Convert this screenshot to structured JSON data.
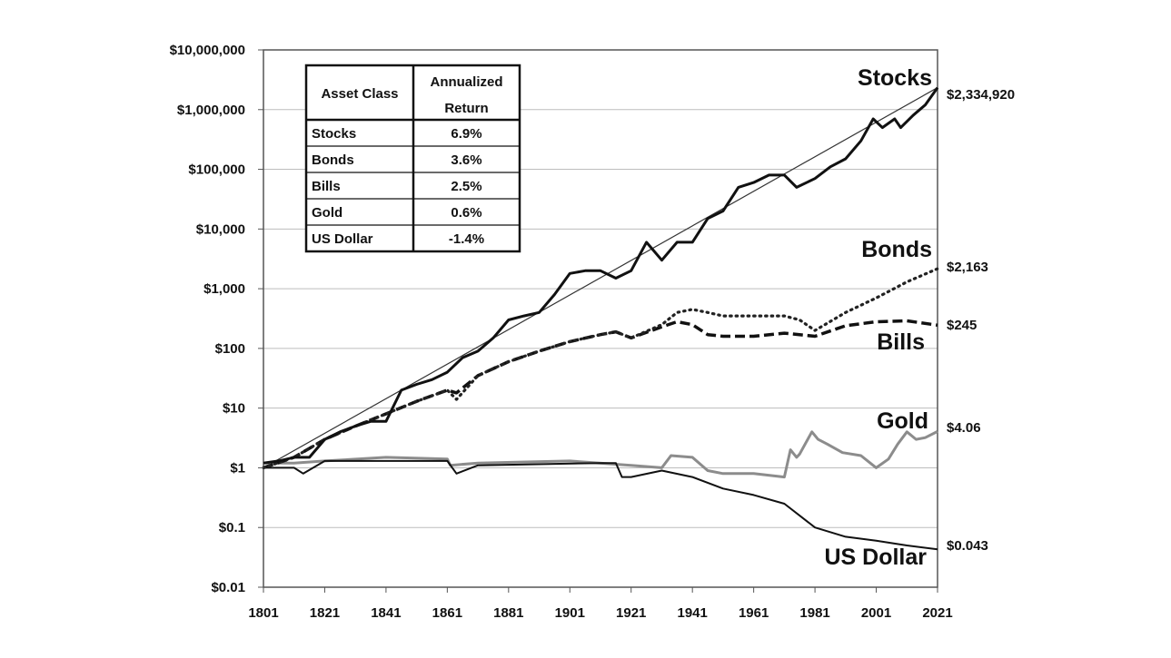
{
  "chart_data": {
    "type": "line",
    "title": "",
    "xlabel": "",
    "ylabel": "",
    "y_scale": "log",
    "xlim": [
      1801,
      2021
    ],
    "ylim": [
      0.01,
      10000000
    ],
    "grid": "horizontal",
    "x_ticks": [
      "1801",
      "1821",
      "1841",
      "1861",
      "1881",
      "1901",
      "1921",
      "1941",
      "1961",
      "1981",
      "2001",
      "2021"
    ],
    "y_ticks": [
      {
        "value": 0.01,
        "label": "$0.01"
      },
      {
        "value": 0.1,
        "label": "$0.1"
      },
      {
        "value": 1,
        "label": "$1"
      },
      {
        "value": 10,
        "label": "$10"
      },
      {
        "value": 100,
        "label": "$100"
      },
      {
        "value": 1000,
        "label": "$1,000"
      },
      {
        "value": 10000,
        "label": "$10,000"
      },
      {
        "value": 100000,
        "label": "$100,000"
      },
      {
        "value": 1000000,
        "label": "$1,000,000"
      },
      {
        "value": 10000000,
        "label": "$10,000,000"
      }
    ],
    "trend_line": {
      "x": [
        1801,
        2021
      ],
      "y": [
        1,
        2334920
      ]
    },
    "series": [
      {
        "name": "Stocks",
        "end_label": "$2,334,920",
        "color": "#111111",
        "style": "solid",
        "x": [
          1801,
          1806,
          1811,
          1816,
          1821,
          1826,
          1831,
          1836,
          1841,
          1846,
          1851,
          1856,
          1861,
          1866,
          1871,
          1876,
          1881,
          1886,
          1891,
          1896,
          1901,
          1906,
          1911,
          1916,
          1921,
          1926,
          1931,
          1936,
          1941,
          1946,
          1951,
          1956,
          1961,
          1966,
          1971,
          1975,
          1981,
          1986,
          1991,
          1996,
          2000,
          2003,
          2007,
          2009,
          2013,
          2017,
          2021
        ],
        "y": [
          1.2,
          1.3,
          1.5,
          1.5,
          3,
          4,
          5,
          6,
          6,
          20,
          25,
          30,
          40,
          70,
          90,
          150,
          300,
          350,
          400,
          800,
          1800,
          2000,
          2000,
          1500,
          2000,
          6000,
          3000,
          6000,
          6000,
          15000,
          20000,
          50000,
          60000,
          80000,
          80000,
          50000,
          70000,
          110000,
          150000,
          300000,
          700000,
          500000,
          700000,
          500000,
          800000,
          1200000,
          2334920
        ]
      },
      {
        "name": "Bonds",
        "end_label": "$2,163",
        "color": "#222222",
        "style": "dotted",
        "x": [
          1801,
          1811,
          1821,
          1831,
          1841,
          1851,
          1861,
          1864,
          1871,
          1881,
          1891,
          1901,
          1911,
          1916,
          1921,
          1931,
          1936,
          1941,
          1946,
          1951,
          1961,
          1971,
          1976,
          1981,
          1991,
          2001,
          2011,
          2021
        ],
        "y": [
          1,
          1.5,
          3,
          5,
          8,
          13,
          20,
          14,
          35,
          60,
          90,
          130,
          170,
          190,
          150,
          250,
          400,
          450,
          400,
          350,
          350,
          350,
          300,
          200,
          400,
          700,
          1300,
          2163
        ]
      },
      {
        "name": "Bills",
        "end_label": "$245",
        "color": "#111111",
        "style": "dashed",
        "x": [
          1801,
          1811,
          1821,
          1831,
          1841,
          1851,
          1861,
          1864,
          1871,
          1881,
          1891,
          1901,
          1911,
          1916,
          1921,
          1931,
          1936,
          1941,
          1946,
          1951,
          1961,
          1971,
          1981,
          1991,
          2001,
          2011,
          2021
        ],
        "y": [
          1,
          1.5,
          3,
          5,
          8,
          13,
          20,
          18,
          35,
          60,
          90,
          130,
          170,
          190,
          150,
          230,
          280,
          250,
          170,
          160,
          160,
          180,
          160,
          240,
          280,
          290,
          245
        ]
      },
      {
        "name": "Gold",
        "end_label": "$4.06",
        "color": "#8c8c8c",
        "style": "solid",
        "x": [
          1801,
          1811,
          1821,
          1841,
          1861,
          1862,
          1871,
          1901,
          1921,
          1931,
          1934,
          1941,
          1946,
          1951,
          1961,
          1971,
          1973,
          1975,
          1976,
          1980,
          1982,
          1985,
          1990,
          1996,
          2001,
          2005,
          2008,
          2011,
          2014,
          2017,
          2021
        ],
        "y": [
          1.2,
          1.2,
          1.3,
          1.5,
          1.4,
          1.1,
          1.2,
          1.3,
          1.1,
          1.0,
          1.6,
          1.5,
          0.9,
          0.8,
          0.8,
          0.7,
          2.0,
          1.5,
          1.7,
          4.0,
          3.0,
          2.5,
          1.8,
          1.6,
          1.0,
          1.4,
          2.5,
          4.0,
          3.0,
          3.2,
          4.06
        ]
      },
      {
        "name": "US Dollar",
        "end_label": "$0.043",
        "color": "#111111",
        "style": "solid",
        "x": [
          1801,
          1811,
          1814,
          1821,
          1841,
          1861,
          1864,
          1871,
          1911,
          1916,
          1918,
          1921,
          1931,
          1941,
          1951,
          1961,
          1971,
          1981,
          1991,
          2001,
          2011,
          2021
        ],
        "y": [
          1,
          1,
          0.8,
          1.3,
          1.3,
          1.3,
          0.8,
          1.1,
          1.2,
          1.2,
          0.7,
          0.7,
          0.9,
          0.7,
          0.45,
          0.35,
          0.25,
          0.1,
          0.07,
          0.06,
          0.05,
          0.043
        ]
      }
    ],
    "table": {
      "headers": [
        "Asset Class",
        "Annualized Return"
      ],
      "header_lines": [
        [
          "Asset Class"
        ],
        [
          "Annualized",
          "Return"
        ]
      ],
      "rows": [
        {
          "asset": "Stocks",
          "return": "6.9%"
        },
        {
          "asset": "Bonds",
          "return": "3.6%"
        },
        {
          "asset": "Bills",
          "return": "2.5%"
        },
        {
          "asset": "Gold",
          "return": "0.6%"
        },
        {
          "asset": "US Dollar",
          "return": "-1.4%"
        }
      ]
    }
  }
}
